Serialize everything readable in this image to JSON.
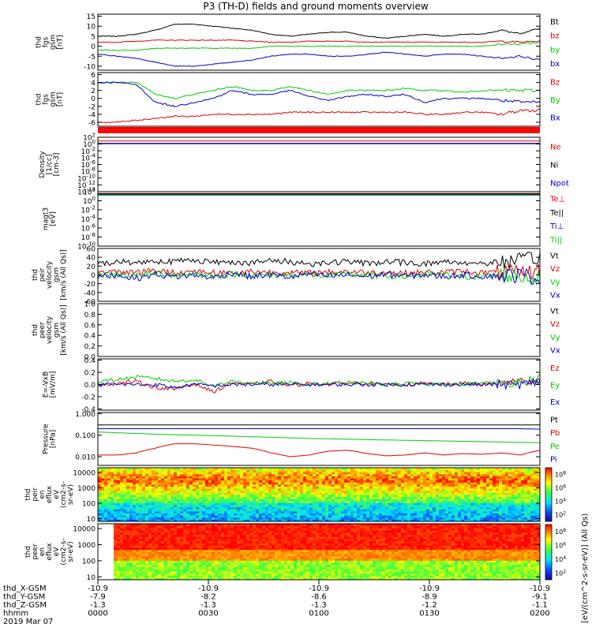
{
  "title": "P3 (TH-D) fields and ground moments overview",
  "time_axis": {
    "ticks": [
      "0000",
      "0030",
      "0100",
      "0130",
      "0200"
    ],
    "date": "2019 Mar 07",
    "rows": [
      {
        "label": "thd_X-GSM",
        "values": [
          "-10.9",
          "-10.9",
          "-10.9",
          "-10.9",
          "-10.9"
        ]
      },
      {
        "label": "thd_Y-GSM",
        "values": [
          "-7.9",
          "-8.2",
          "-8.6",
          "-8.9",
          "-9.1"
        ]
      },
      {
        "label": "thd_Z-GSM",
        "values": [
          "-1.3",
          "-1.3",
          "-1.3",
          "-1.2",
          "-1.1"
        ]
      },
      {
        "label": "hhmm",
        "values": [
          "0000",
          "0030",
          "0100",
          "0130",
          "0200"
        ]
      }
    ]
  },
  "colorbar": {
    "unit_label": "[eV/(cm^2-s-sr-eV)] (All Qs)",
    "top_ticks": [
      "10^8",
      "10^6",
      "10^4",
      "10^2"
    ],
    "bottom_ticks": [
      "10^8",
      "10^6",
      "10^4",
      "10^2"
    ]
  },
  "chart_data": [
    {
      "id": "fgs",
      "type": "line",
      "ylabel": [
        "thd",
        "fgs",
        "gsm",
        "[nT]"
      ],
      "ylim": [
        -12,
        16
      ],
      "yticks": [
        "15",
        "10",
        "5",
        "0",
        "-5",
        "-10"
      ],
      "series": [
        {
          "name": "Bt",
          "color": "#000000",
          "values": [
            5,
            5,
            6,
            8,
            11,
            11,
            10,
            9,
            8,
            6,
            5,
            6,
            7,
            7,
            5,
            4,
            5,
            6,
            5,
            6,
            6,
            8,
            6,
            9
          ]
        },
        {
          "name": "bz",
          "color": "#e00000",
          "values": [
            2,
            2,
            2.5,
            3,
            3,
            3,
            3,
            3,
            2.5,
            2,
            2,
            2.5,
            2.5,
            2.5,
            2,
            2,
            2,
            2,
            2,
            2,
            2,
            2.5,
            2,
            2.5
          ]
        },
        {
          "name": "by",
          "color": "#00cc00",
          "values": [
            -2,
            -2,
            -2,
            -1,
            -1,
            -1,
            -1,
            -1,
            -1,
            0,
            0,
            0,
            0,
            0,
            0,
            0,
            0,
            0,
            0,
            0,
            0,
            1,
            1,
            2
          ]
        },
        {
          "name": "bx",
          "color": "#0000cc",
          "values": [
            -4,
            -5,
            -6,
            -8,
            -10,
            -10,
            -9,
            -8,
            -7,
            -5,
            -4,
            -4,
            -5,
            -5,
            -4,
            -3,
            -4,
            -5,
            -4,
            -4,
            -5,
            -6,
            -5,
            -7
          ]
        }
      ]
    },
    {
      "id": "fgs_geo",
      "type": "line",
      "ylabel": [
        "thd",
        "fgs",
        "gsm",
        "[nT]"
      ],
      "ylim": [
        -7,
        6.5
      ],
      "yticks": [
        "6",
        "4",
        "2",
        "0",
        "-2",
        "-4",
        "-6"
      ],
      "series": [
        {
          "name": "Bz",
          "color": "#e00000",
          "values": [
            -6,
            -6,
            -5.5,
            -5,
            -4.5,
            -4.5,
            -4,
            -4,
            -4,
            -4,
            -3.5,
            -3.5,
            -3.5,
            -3.5,
            -3.5,
            -3.5,
            -3.5,
            -4,
            -4,
            -3.5,
            -3.5,
            -4,
            -3,
            -3
          ]
        },
        {
          "name": "By",
          "color": "#00cc00",
          "values": [
            4,
            4,
            4,
            1,
            0,
            1,
            2,
            3,
            2,
            2,
            3,
            2,
            1,
            2,
            2,
            2,
            2.5,
            2,
            2,
            1.5,
            2,
            2,
            2,
            2
          ]
        },
        {
          "name": "Bx",
          "color": "#0000cc",
          "values": [
            4,
            4,
            3.5,
            -1,
            -2,
            -1,
            0,
            2,
            1,
            1,
            2,
            0.5,
            -0.5,
            0.5,
            1,
            0.5,
            1,
            -1,
            0,
            0,
            0,
            -0.5,
            -1,
            -1
          ]
        }
      ]
    },
    {
      "id": "density",
      "type": "line",
      "log": true,
      "ylabel": [
        "Density",
        "[1/cc]",
        "[cm-3]"
      ],
      "ylim": [
        -14,
        2
      ],
      "yticks": [
        "10^2",
        "10^0",
        "10^-2",
        "10^-4",
        "10^-6",
        "10^-8",
        "10^-10",
        "10^-12",
        "10^-14"
      ],
      "series": [
        {
          "name": "Ne",
          "color": "#e00000",
          "values": [
            0.9,
            0.9,
            0.9,
            0.9,
            0.9,
            0.9,
            0.9,
            0.9,
            0.9,
            0.9,
            0.9,
            0.9,
            0.9,
            0.9,
            0.9,
            0.9,
            0.9,
            0.9,
            0.9,
            0.9,
            0.9,
            0.9,
            0.9,
            0.9
          ]
        },
        {
          "name": "Ni",
          "color": "#000000",
          "values": [
            0.2,
            0.2,
            0.2,
            0.2,
            0.2,
            0.2,
            0.2,
            0.2,
            0.2,
            0.2,
            0.2,
            0.2,
            0.2,
            0.2,
            0.2,
            0.2,
            0.2,
            0.2,
            0.2,
            0.2,
            0.2,
            0.2,
            0.2,
            0.2
          ]
        },
        {
          "name": "Npot",
          "color": "#0000cc",
          "values": [
            0.1,
            0.1,
            0.1,
            0.1,
            0.1,
            0.1,
            0.1,
            0.1,
            0.1,
            0.1,
            0.1,
            0.1,
            0.1,
            0.1,
            0.1,
            0.1,
            0.1,
            0.1,
            0.1,
            0.1,
            0.1,
            0.1,
            0.1,
            0.1
          ]
        }
      ]
    },
    {
      "id": "temp",
      "type": "line",
      "log": true,
      "ylabel": [
        "magt3",
        "[eV]"
      ],
      "ylim": [
        -10,
        2
      ],
      "yticks": [
        "10^2",
        "10^0",
        "10^-2",
        "10^-4",
        "10^-6",
        "10^-8",
        "10^-10"
      ],
      "series": [
        {
          "name": "Te⊥",
          "color": "#e00000",
          "values": [
            1.6,
            1.6,
            1.6,
            1.6,
            1.6,
            1.6,
            1.6,
            1.6,
            1.6,
            1.6,
            1.6,
            1.6,
            1.6,
            1.6,
            1.6,
            1.6,
            1.6,
            1.6,
            1.6,
            1.6,
            1.6,
            1.6,
            1.6,
            1.6
          ]
        },
        {
          "name": "Te||",
          "color": "#000000",
          "values": [
            1.5,
            1.5,
            1.5,
            1.5,
            1.5,
            1.5,
            1.5,
            1.5,
            1.5,
            1.5,
            1.5,
            1.5,
            1.5,
            1.5,
            1.5,
            1.5,
            1.5,
            1.5,
            1.5,
            1.5,
            1.5,
            1.5,
            1.5,
            1.5
          ]
        },
        {
          "name": "Ti⊥",
          "color": "#0000cc",
          "values": [
            1.3,
            1.3,
            1.3,
            1.3,
            1.3,
            1.3,
            1.3,
            1.3,
            1.3,
            1.3,
            1.3,
            1.3,
            1.3,
            1.3,
            1.3,
            1.3,
            1.3,
            1.3,
            1.3,
            1.3,
            1.3,
            1.3,
            1.3,
            1.3
          ]
        },
        {
          "name": "Ti||",
          "color": "#00cc00",
          "values": [
            1.2,
            1.2,
            1.2,
            1.2,
            1.2,
            1.2,
            1.2,
            1.2,
            1.2,
            1.2,
            1.2,
            1.2,
            1.2,
            1.2,
            1.2,
            1.2,
            1.2,
            1.2,
            1.2,
            1.2,
            1.2,
            1.2,
            1.2,
            1.2
          ]
        }
      ]
    },
    {
      "id": "peir_vel",
      "type": "line",
      "ylabel": [
        "thd",
        "peir",
        "velocity",
        "gsm",
        "[km/s (All Qs)]"
      ],
      "ylim": [
        -60,
        60
      ],
      "yticks": [
        "60",
        "40",
        "20",
        "0",
        "-20",
        "-40",
        "-60"
      ],
      "series": [
        {
          "name": "Vt",
          "color": "#000000",
          "values": [
            25,
            30,
            28,
            32,
            30,
            35,
            28,
            30,
            27,
            32,
            30,
            25,
            28,
            30,
            26,
            30,
            28,
            25,
            30,
            28,
            26,
            30,
            32,
            40
          ]
        },
        {
          "name": "Vz",
          "color": "#e00000",
          "values": [
            5,
            8,
            6,
            10,
            5,
            8,
            6,
            4,
            8,
            6,
            5,
            4,
            6,
            8,
            5,
            6,
            4,
            5,
            6,
            8,
            5,
            6,
            4,
            10
          ]
        },
        {
          "name": "Vy",
          "color": "#00cc00",
          "values": [
            0,
            2,
            -2,
            4,
            0,
            3,
            -3,
            2,
            0,
            -2,
            2,
            0,
            -3,
            2,
            0,
            -2,
            -4,
            2,
            0,
            -5,
            -3,
            0,
            -5,
            -8
          ]
        },
        {
          "name": "Vx",
          "color": "#0000cc",
          "values": [
            -5,
            0,
            -8,
            2,
            -5,
            0,
            -6,
            4,
            -4,
            0,
            -5,
            2,
            -3,
            0,
            -4,
            2,
            -3,
            0,
            -4,
            0,
            -3,
            -2,
            0,
            -8
          ]
        }
      ]
    },
    {
      "id": "peer_vel",
      "type": "line",
      "ylabel": [
        "thd",
        "peer",
        "velocity",
        "gsm",
        "[km/s (All Qs)]"
      ],
      "ylim": [
        0,
        1
      ],
      "yticks": [
        "1.0",
        "0.8",
        "0.6",
        "0.4",
        "0.2",
        "0.0"
      ],
      "series": [
        {
          "name": "Vt",
          "color": "#000000",
          "values": []
        },
        {
          "name": "Vz",
          "color": "#e00000",
          "values": []
        },
        {
          "name": "Vy",
          "color": "#00cc00",
          "values": []
        },
        {
          "name": "Vx",
          "color": "#0000cc",
          "values": []
        }
      ]
    },
    {
      "id": "efield",
      "type": "line",
      "ylabel": [
        "E=-VxB",
        "[mV/m]"
      ],
      "ylim": [
        -0.42,
        0.42
      ],
      "yticks": [
        "0.4",
        "0.2",
        "0.0",
        "-0.2",
        "-0.4"
      ],
      "series": [
        {
          "name": "Ez",
          "color": "#e00000",
          "values": [
            0.0,
            0.02,
            0.05,
            -0.05,
            -0.08,
            0.02,
            -0.12,
            0.03,
            0.0,
            0.05,
            -0.02,
            0.02,
            0.0,
            0.02,
            0.03,
            -0.01,
            0.0,
            0.02,
            0.0,
            0.02,
            0.0,
            0.03,
            0.05,
            0.08
          ]
        },
        {
          "name": "Ey",
          "color": "#00cc00",
          "values": [
            0.05,
            0.08,
            0.12,
            0.1,
            0.05,
            0.08,
            -0.02,
            0.05,
            0.03,
            0.02,
            0.03,
            0.0,
            0.02,
            0.03,
            0.02,
            0.0,
            0.02,
            0.0,
            0.02,
            0.0,
            0.03,
            0.02,
            0.05,
            0.1
          ]
        },
        {
          "name": "Ex",
          "color": "#0000cc",
          "values": [
            0.0,
            0.0,
            0.0,
            0.0,
            -0.05,
            0.0,
            -0.02,
            0.0,
            0.0,
            0.0,
            0.0,
            0.0,
            0.0,
            0.0,
            0.0,
            0.0,
            0.0,
            0.0,
            0.0,
            0.0,
            0.0,
            0.0,
            0.0,
            0.05
          ]
        }
      ]
    },
    {
      "id": "pressure",
      "type": "line",
      "log": true,
      "ylabel": [
        "Pressure",
        "[nPa]"
      ],
      "ylim": [
        -2.4,
        0.05
      ],
      "yticks": [
        "1.000",
        "0.100",
        "0.010"
      ],
      "series": [
        {
          "name": "Pt",
          "color": "#000000",
          "values": [
            0.3,
            0.3,
            0.3,
            0.3,
            0.3,
            0.3,
            0.3,
            0.3,
            0.3,
            0.3,
            0.3,
            0.3,
            0.3,
            0.3,
            0.3,
            0.3,
            0.3,
            0.3,
            0.3,
            0.3,
            0.3,
            0.3,
            0.3,
            0.3
          ]
        },
        {
          "name": "Pb",
          "color": "#e00000",
          "values": [
            0.012,
            0.012,
            0.015,
            0.025,
            0.04,
            0.04,
            0.035,
            0.03,
            0.025,
            0.015,
            0.01,
            0.012,
            0.018,
            0.02,
            0.014,
            0.011,
            0.012,
            0.015,
            0.012,
            0.014,
            0.013,
            0.015,
            0.012,
            0.02
          ]
        },
        {
          "name": "Pe",
          "color": "#00cc00",
          "values": [
            0.14,
            0.13,
            0.12,
            0.11,
            0.105,
            0.1,
            0.095,
            0.09,
            0.085,
            0.08,
            0.075,
            0.07,
            0.068,
            0.065,
            0.062,
            0.06,
            0.058,
            0.056,
            0.054,
            0.052,
            0.05,
            0.048,
            0.046,
            0.045
          ]
        },
        {
          "name": "Pi",
          "color": "#0000cc",
          "values": [
            0.2,
            0.2,
            0.2,
            0.2,
            0.2,
            0.2,
            0.2,
            0.2,
            0.2,
            0.2,
            0.2,
            0.2,
            0.2,
            0.2,
            0.2,
            0.2,
            0.2,
            0.2,
            0.2,
            0.2,
            0.2,
            0.2,
            0.2,
            0.19
          ]
        }
      ]
    },
    {
      "id": "peir_en",
      "type": "heatmap",
      "log": true,
      "ylabel": [
        "thd",
        "peir",
        "en",
        "eflux",
        "eV",
        "(cm2-s-",
        "sr-eV)"
      ],
      "ylim": [
        6.6,
        20000
      ],
      "yticks": [
        "10000",
        "1000",
        "100",
        "10"
      ]
    },
    {
      "id": "peer_en",
      "type": "heatmap",
      "log": true,
      "ylabel": [
        "thd",
        "peer",
        "en",
        "eflux",
        "eV",
        "(cm2-s-",
        "sr-eV)"
      ],
      "ylim": [
        6.6,
        20000
      ],
      "yticks": [
        "10000",
        "1000",
        "100",
        "10"
      ]
    }
  ]
}
